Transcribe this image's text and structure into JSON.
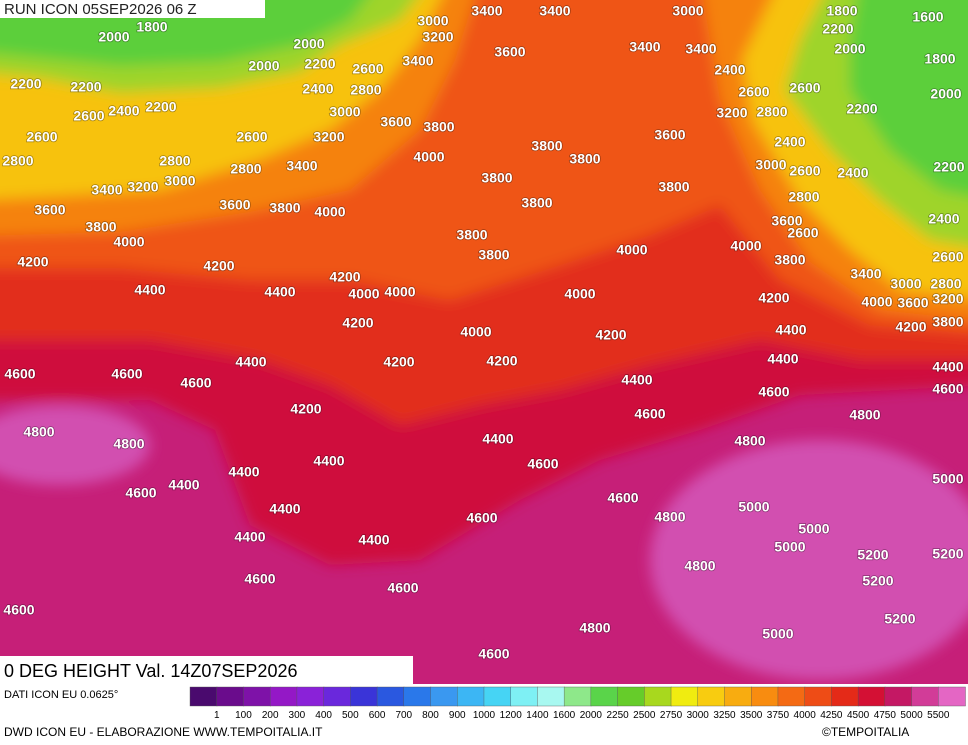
{
  "header": {
    "run": "RUN ICON 05SEP2026 06 Z",
    "field": "0 DEG HEIGHT Val. 14Z07SEP2026"
  },
  "map": {
    "contour_labels": [
      "3000",
      "3400",
      "3400",
      "3000",
      "1800",
      "1600",
      "2000",
      "1800",
      "3200",
      "2200",
      "2000",
      "3600",
      "3400",
      "3400",
      "2000",
      "1800",
      "2000",
      "2200",
      "2600",
      "3400",
      "2400",
      "2200",
      "2200",
      "2400",
      "2800",
      "2600",
      "2600",
      "2000",
      "2400",
      "2600",
      "2200",
      "3000",
      "3200",
      "2800",
      "2200",
      "3600",
      "3800",
      "2600",
      "2600",
      "3200",
      "3600",
      "2400",
      "2800",
      "4000",
      "3800",
      "3800",
      "2800",
      "2800",
      "3400",
      "3000",
      "2600",
      "2400",
      "2200",
      "3000",
      "3400",
      "3200",
      "3800",
      "3800",
      "2800",
      "3600",
      "3600",
      "3800",
      "4000",
      "3800",
      "2400",
      "3800",
      "4000",
      "3600",
      "3800",
      "2600",
      "4000",
      "4000",
      "4200",
      "4200",
      "3800",
      "3800",
      "2600",
      "4200",
      "3400",
      "3000",
      "2800",
      "4400",
      "4400",
      "4000",
      "4000",
      "4000",
      "4200",
      "4000",
      "3600",
      "3200",
      "4200",
      "4000",
      "4200",
      "4400",
      "4200",
      "3800",
      "4400",
      "4200",
      "4200",
      "4400",
      "4600",
      "4600",
      "4600",
      "4400",
      "4400",
      "4600",
      "4600",
      "4200",
      "4600",
      "4800",
      "4800",
      "4800",
      "4400",
      "4800",
      "4400",
      "4400",
      "4600",
      "4600",
      "4400",
      "4600",
      "5000",
      "4400",
      "4800",
      "5000",
      "4600",
      "5000",
      "4400",
      "4400",
      "5000",
      "5200",
      "5200",
      "4800",
      "4600",
      "5200",
      "4600",
      "4600",
      "5200",
      "4800",
      "5000",
      "4600"
    ]
  },
  "legend": {
    "source": "DATI ICON EU 0.0625°",
    "ticks": [
      "1",
      "100",
      "200",
      "300",
      "400",
      "500",
      "600",
      "700",
      "800",
      "900",
      "1000",
      "1200",
      "1400",
      "1600",
      "2000",
      "2250",
      "2500",
      "2750",
      "3000",
      "3250",
      "3500",
      "3750",
      "4000",
      "4250",
      "4500",
      "4750",
      "5000",
      "5500"
    ]
  },
  "footer": {
    "credit": "DWD ICON EU - ELABORAZIONE WWW.TEMPOITALIA.IT",
    "copyright": "©TEMPOITALIA"
  }
}
